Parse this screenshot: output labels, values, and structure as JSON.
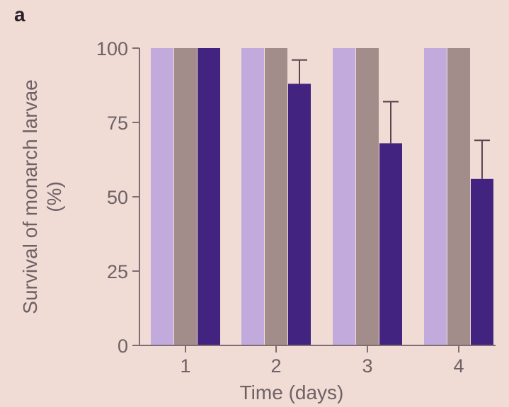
{
  "panel_label": "a",
  "chart_data": {
    "type": "bar",
    "xlabel": "Time (days)",
    "ylabel": "Survival of monarch larvae",
    "ylabel_unit": "(%)",
    "categories": [
      "1",
      "2",
      "3",
      "4"
    ],
    "yticks": [
      "0",
      "25",
      "50",
      "75",
      "100"
    ],
    "ylim": [
      0,
      100
    ],
    "grid": false,
    "legend": "none",
    "series": [
      {
        "color": "#c3aadd",
        "values": [
          100,
          100,
          100,
          100
        ],
        "errors": [
          0,
          0,
          0,
          0
        ]
      },
      {
        "color": "#a28d8a",
        "values": [
          100,
          100,
          100,
          100
        ],
        "errors": [
          0,
          0,
          0,
          0
        ]
      },
      {
        "color": "#42237f",
        "values": [
          100,
          88,
          68,
          56
        ],
        "errors": [
          0,
          8,
          14,
          13
        ]
      }
    ]
  }
}
